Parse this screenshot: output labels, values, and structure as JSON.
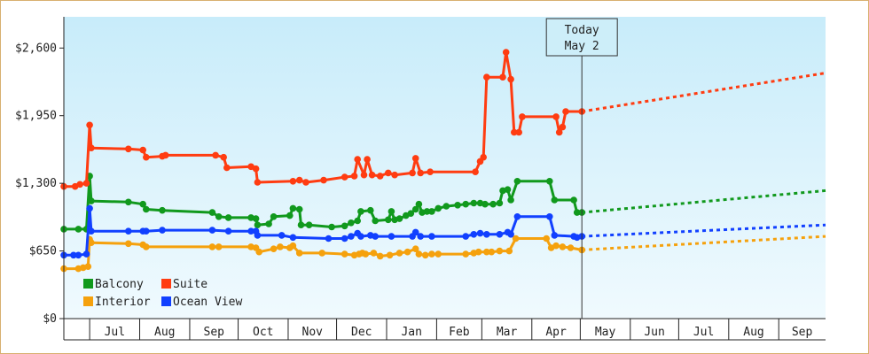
{
  "chart_data": {
    "type": "line",
    "title": "",
    "xlabel": "",
    "ylabel": "",
    "y_axis": {
      "ticks": [
        0,
        650,
        1300,
        1950,
        2600
      ],
      "tick_labels": [
        "$0",
        "$650",
        "$1,300",
        "$1,950",
        "$2,600"
      ],
      "ylim": [
        0,
        2900
      ]
    },
    "x_axis": {
      "start": "2018-06-15",
      "end": "2019-09-30",
      "month_labels": [
        {
          "label": "Jul",
          "date": "2018-07-01"
        },
        {
          "label": "Aug",
          "date": "2018-08-01"
        },
        {
          "label": "Sep",
          "date": "2018-09-01"
        },
        {
          "label": "Oct",
          "date": "2018-10-01"
        },
        {
          "label": "Nov",
          "date": "2018-11-01"
        },
        {
          "label": "Dec",
          "date": "2018-12-01"
        },
        {
          "label": "Jan",
          "date": "2019-01-01"
        },
        {
          "label": "Feb",
          "date": "2019-02-01"
        },
        {
          "label": "Mar",
          "date": "2019-03-01"
        },
        {
          "label": "Apr",
          "date": "2019-04-01"
        },
        {
          "label": "May",
          "date": "2019-05-01"
        },
        {
          "label": "Jun",
          "date": "2019-06-01"
        },
        {
          "label": "Jul",
          "date": "2019-07-01"
        },
        {
          "label": "Aug",
          "date": "2019-08-01"
        },
        {
          "label": "Sep",
          "date": "2019-09-01"
        }
      ]
    },
    "grid": false,
    "background_gradient": [
      "#c8ecfa",
      "#f0fafe"
    ],
    "today_marker": {
      "line1": "Today",
      "line2": "May 2",
      "date": "2019-05-02"
    },
    "legend": {
      "placement": "bottom-left"
    },
    "series": [
      {
        "name": "Balcony",
        "color": "#11991d",
        "points": [
          [
            "2018-06-15",
            860
          ],
          [
            "2018-06-24",
            860
          ],
          [
            "2018-06-29",
            860
          ],
          [
            "2018-07-01",
            1370
          ],
          [
            "2018-07-02",
            1130
          ],
          [
            "2018-07-25",
            1120
          ],
          [
            "2018-08-03",
            1100
          ],
          [
            "2018-08-05",
            1050
          ],
          [
            "2018-08-15",
            1040
          ],
          [
            "2018-09-15",
            1020
          ],
          [
            "2018-09-19",
            980
          ],
          [
            "2018-09-25",
            970
          ],
          [
            "2018-10-09",
            970
          ],
          [
            "2018-10-12",
            960
          ],
          [
            "2018-10-13",
            900
          ],
          [
            "2018-10-20",
            910
          ],
          [
            "2018-10-23",
            980
          ],
          [
            "2018-11-02",
            990
          ],
          [
            "2018-11-04",
            1060
          ],
          [
            "2018-11-08",
            1050
          ],
          [
            "2018-11-09",
            900
          ],
          [
            "2018-11-14",
            900
          ],
          [
            "2018-11-28",
            880
          ],
          [
            "2018-12-06",
            890
          ],
          [
            "2018-12-10",
            920
          ],
          [
            "2018-12-14",
            940
          ],
          [
            "2018-12-16",
            1030
          ],
          [
            "2018-12-22",
            1040
          ],
          [
            "2018-12-25",
            940
          ],
          [
            "2019-01-02",
            950
          ],
          [
            "2019-01-04",
            1030
          ],
          [
            "2019-01-06",
            950
          ],
          [
            "2019-01-09",
            960
          ],
          [
            "2019-01-13",
            990
          ],
          [
            "2019-01-16",
            1010
          ],
          [
            "2019-01-19",
            1050
          ],
          [
            "2019-01-21",
            1100
          ],
          [
            "2019-01-23",
            1020
          ],
          [
            "2019-01-26",
            1030
          ],
          [
            "2019-01-29",
            1030
          ],
          [
            "2019-02-02",
            1060
          ],
          [
            "2019-02-07",
            1080
          ],
          [
            "2019-02-14",
            1090
          ],
          [
            "2019-02-19",
            1100
          ],
          [
            "2019-02-24",
            1110
          ],
          [
            "2019-02-28",
            1110
          ],
          [
            "2019-03-03",
            1100
          ],
          [
            "2019-03-08",
            1100
          ],
          [
            "2019-03-12",
            1110
          ],
          [
            "2019-03-14",
            1230
          ],
          [
            "2019-03-17",
            1240
          ],
          [
            "2019-03-19",
            1140
          ],
          [
            "2019-03-23",
            1320
          ],
          [
            "2019-04-12",
            1320
          ],
          [
            "2019-04-15",
            1140
          ],
          [
            "2019-04-27",
            1140
          ],
          [
            "2019-04-29",
            1020
          ],
          [
            "2019-05-02",
            1020
          ]
        ],
        "projection": [
          [
            "2019-05-02",
            1020
          ],
          [
            "2019-09-30",
            1230
          ]
        ]
      },
      {
        "name": "Suite",
        "color": "#ff3c11",
        "points": [
          [
            "2018-06-15",
            1270
          ],
          [
            "2018-06-22",
            1270
          ],
          [
            "2018-06-25",
            1290
          ],
          [
            "2018-06-29",
            1300
          ],
          [
            "2018-07-01",
            1860
          ],
          [
            "2018-07-02",
            1640
          ],
          [
            "2018-07-25",
            1630
          ],
          [
            "2018-08-03",
            1620
          ],
          [
            "2018-08-05",
            1550
          ],
          [
            "2018-08-15",
            1560
          ],
          [
            "2018-08-17",
            1570
          ],
          [
            "2018-09-17",
            1570
          ],
          [
            "2018-09-22",
            1550
          ],
          [
            "2018-09-24",
            1450
          ],
          [
            "2018-10-09",
            1460
          ],
          [
            "2018-10-12",
            1440
          ],
          [
            "2018-10-13",
            1310
          ],
          [
            "2018-11-04",
            1320
          ],
          [
            "2018-11-08",
            1330
          ],
          [
            "2018-11-12",
            1310
          ],
          [
            "2018-11-23",
            1330
          ],
          [
            "2018-12-06",
            1360
          ],
          [
            "2018-12-12",
            1370
          ],
          [
            "2018-12-14",
            1530
          ],
          [
            "2018-12-18",
            1380
          ],
          [
            "2018-12-20",
            1530
          ],
          [
            "2018-12-23",
            1380
          ],
          [
            "2018-12-28",
            1370
          ],
          [
            "2019-01-02",
            1400
          ],
          [
            "2019-01-06",
            1380
          ],
          [
            "2019-01-17",
            1400
          ],
          [
            "2019-01-19",
            1540
          ],
          [
            "2019-01-22",
            1400
          ],
          [
            "2019-01-28",
            1410
          ],
          [
            "2019-02-25",
            1410
          ],
          [
            "2019-02-28",
            1510
          ],
          [
            "2019-03-02",
            1550
          ],
          [
            "2019-03-04",
            2320
          ],
          [
            "2019-03-14",
            2320
          ],
          [
            "2019-03-16",
            2560
          ],
          [
            "2019-03-19",
            2300
          ],
          [
            "2019-03-21",
            1790
          ],
          [
            "2019-03-24",
            1790
          ],
          [
            "2019-03-26",
            1940
          ],
          [
            "2019-04-16",
            1940
          ],
          [
            "2019-04-18",
            1790
          ],
          [
            "2019-04-20",
            1840
          ],
          [
            "2019-04-22",
            1990
          ],
          [
            "2019-05-02",
            1990
          ]
        ],
        "projection": [
          [
            "2019-05-02",
            1990
          ],
          [
            "2019-09-30",
            2360
          ]
        ]
      },
      {
        "name": "Interior",
        "color": "#f5a10d",
        "points": [
          [
            "2018-06-15",
            480
          ],
          [
            "2018-06-24",
            480
          ],
          [
            "2018-06-27",
            490
          ],
          [
            "2018-06-30",
            500
          ],
          [
            "2018-07-01",
            760
          ],
          [
            "2018-07-02",
            730
          ],
          [
            "2018-07-25",
            720
          ],
          [
            "2018-08-03",
            710
          ],
          [
            "2018-08-05",
            690
          ],
          [
            "2018-09-15",
            690
          ],
          [
            "2018-09-19",
            690
          ],
          [
            "2018-10-09",
            690
          ],
          [
            "2018-10-12",
            680
          ],
          [
            "2018-10-14",
            640
          ],
          [
            "2018-10-23",
            670
          ],
          [
            "2018-10-27",
            690
          ],
          [
            "2018-11-02",
            680
          ],
          [
            "2018-11-04",
            700
          ],
          [
            "2018-11-08",
            630
          ],
          [
            "2018-11-22",
            630
          ],
          [
            "2018-12-06",
            620
          ],
          [
            "2018-12-12",
            610
          ],
          [
            "2018-12-15",
            620
          ],
          [
            "2018-12-17",
            630
          ],
          [
            "2018-12-19",
            620
          ],
          [
            "2018-12-24",
            630
          ],
          [
            "2018-12-28",
            600
          ],
          [
            "2019-01-03",
            610
          ],
          [
            "2019-01-09",
            630
          ],
          [
            "2019-01-14",
            640
          ],
          [
            "2019-01-19",
            670
          ],
          [
            "2019-01-21",
            620
          ],
          [
            "2019-01-25",
            610
          ],
          [
            "2019-01-29",
            620
          ],
          [
            "2019-02-02",
            620
          ],
          [
            "2019-02-19",
            620
          ],
          [
            "2019-02-24",
            630
          ],
          [
            "2019-02-27",
            640
          ],
          [
            "2019-03-04",
            640
          ],
          [
            "2019-03-07",
            640
          ],
          [
            "2019-03-12",
            650
          ],
          [
            "2019-03-18",
            650
          ],
          [
            "2019-03-22",
            770
          ],
          [
            "2019-04-10",
            770
          ],
          [
            "2019-04-13",
            680
          ],
          [
            "2019-04-16",
            700
          ],
          [
            "2019-04-20",
            690
          ],
          [
            "2019-04-25",
            680
          ],
          [
            "2019-05-02",
            660
          ]
        ],
        "projection": [
          [
            "2019-05-02",
            660
          ],
          [
            "2019-09-30",
            790
          ]
        ]
      },
      {
        "name": "Ocean View",
        "color": "#1140ff",
        "points": [
          [
            "2018-06-15",
            610
          ],
          [
            "2018-06-21",
            610
          ],
          [
            "2018-06-24",
            610
          ],
          [
            "2018-06-29",
            620
          ],
          [
            "2018-07-01",
            1060
          ],
          [
            "2018-07-02",
            840
          ],
          [
            "2018-07-25",
            840
          ],
          [
            "2018-08-03",
            840
          ],
          [
            "2018-08-05",
            840
          ],
          [
            "2018-08-15",
            850
          ],
          [
            "2018-09-15",
            850
          ],
          [
            "2018-09-25",
            840
          ],
          [
            "2018-10-09",
            840
          ],
          [
            "2018-10-12",
            840
          ],
          [
            "2018-10-13",
            800
          ],
          [
            "2018-10-28",
            800
          ],
          [
            "2018-11-04",
            780
          ],
          [
            "2018-11-26",
            770
          ],
          [
            "2018-12-06",
            770
          ],
          [
            "2018-12-10",
            790
          ],
          [
            "2018-12-14",
            820
          ],
          [
            "2018-12-16",
            790
          ],
          [
            "2018-12-22",
            800
          ],
          [
            "2018-12-25",
            790
          ],
          [
            "2019-01-04",
            790
          ],
          [
            "2019-01-17",
            790
          ],
          [
            "2019-01-19",
            830
          ],
          [
            "2019-01-22",
            790
          ],
          [
            "2019-01-29",
            790
          ],
          [
            "2019-02-19",
            790
          ],
          [
            "2019-02-24",
            810
          ],
          [
            "2019-02-28",
            820
          ],
          [
            "2019-03-04",
            810
          ],
          [
            "2019-03-12",
            810
          ],
          [
            "2019-03-17",
            830
          ],
          [
            "2019-03-19",
            810
          ],
          [
            "2019-03-23",
            980
          ],
          [
            "2019-04-12",
            980
          ],
          [
            "2019-04-15",
            800
          ],
          [
            "2019-04-27",
            790
          ],
          [
            "2019-04-29",
            780
          ],
          [
            "2019-05-02",
            790
          ]
        ],
        "projection": [
          [
            "2019-05-02",
            790
          ],
          [
            "2019-09-30",
            900
          ]
        ]
      }
    ]
  }
}
